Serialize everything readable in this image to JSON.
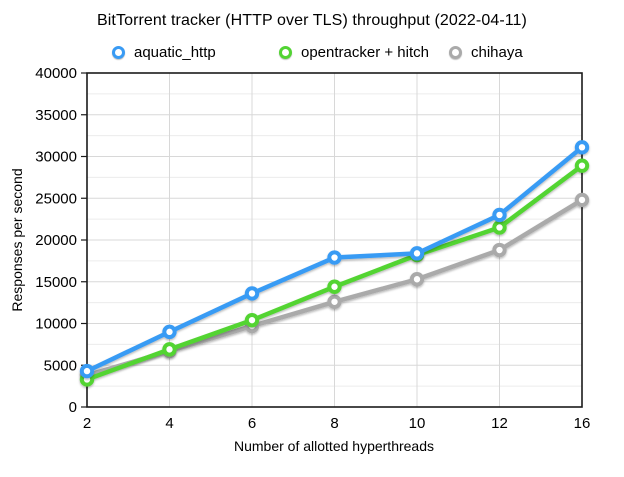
{
  "chart_data": {
    "type": "line",
    "title": "BitTorrent tracker (HTTP over TLS) throughput (2022-04-11)",
    "xlabel": "Number of allotted hyperthreads",
    "ylabel": "Responses per second",
    "x_categories": [
      2,
      4,
      6,
      8,
      10,
      12,
      16
    ],
    "ylim": [
      0,
      40000
    ],
    "y_major_step": 5000,
    "y_minor_step": 2500,
    "grid": true,
    "legend_position": "top",
    "axis_color": "#1a1a1a",
    "grid_major_color": "#d8d8d8",
    "grid_minor_color": "#ececec",
    "series": [
      {
        "name": "aquatic_http",
        "color": "#399BF4",
        "values": [
          4300,
          9000,
          13600,
          17900,
          18400,
          23000,
          31100
        ]
      },
      {
        "name": "opentracker + hitch",
        "color": "#52D433",
        "values": [
          3300,
          6900,
          10400,
          14400,
          18200,
          21500,
          28900
        ]
      },
      {
        "name": "chihaya",
        "color": "#AAAAAA",
        "values": [
          3800,
          6700,
          9700,
          12600,
          15300,
          18800,
          24800
        ]
      }
    ]
  }
}
